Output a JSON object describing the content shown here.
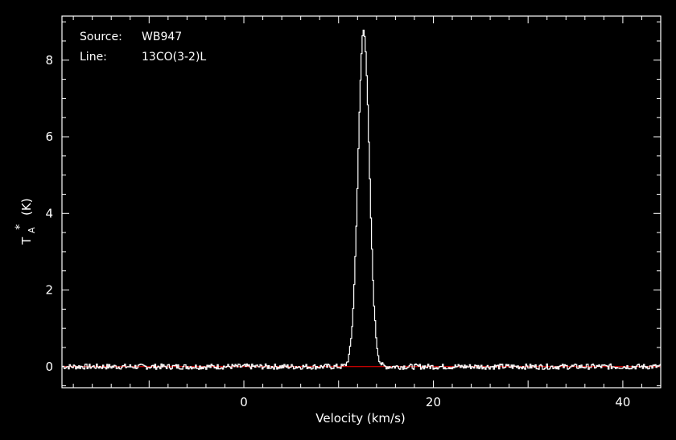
{
  "chart_data": {
    "type": "line",
    "source_label": "Source:",
    "source_value": "WB947",
    "line_label": "Line:",
    "line_value": "13CO(3-2)L",
    "xlabel": "Velocity (km/s)",
    "ylabel": "T",
    "ylabel_sub": "A",
    "ylabel_sup": "*",
    "ylabel_unit": "(K)",
    "xlim": [
      -19.2,
      44.0
    ],
    "ylim": [
      -0.55,
      9.15
    ],
    "xticks": [
      0,
      20,
      40
    ],
    "yticks": [
      0,
      2,
      4,
      6,
      8
    ],
    "baseline": 0,
    "peak_velocity": 12.6,
    "peak_value": 8.8,
    "fwhm": 1.4,
    "colors": {
      "background": "#000000",
      "spectrum": "#ffffff",
      "axes": "#ffffff",
      "baseline": "#ff0000",
      "text": "#ffffff"
    }
  }
}
